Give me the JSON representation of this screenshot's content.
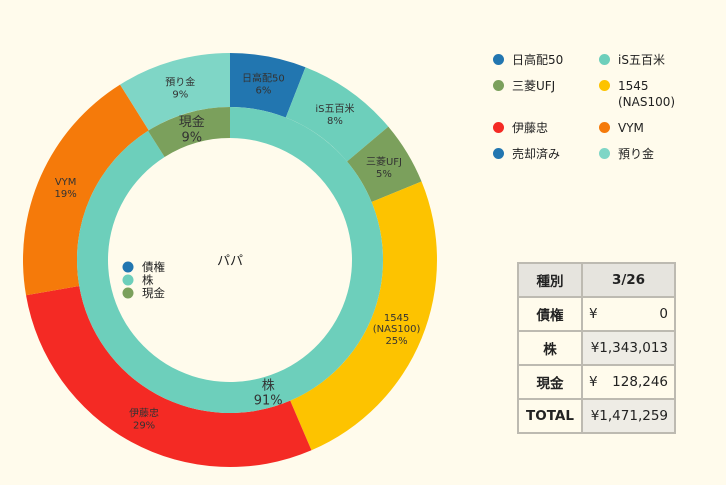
{
  "chart_data": {
    "type": "pie",
    "center_label": "パパ",
    "outer": [
      {
        "label": "日高配50",
        "pct_label": "6%",
        "value": 6,
        "color": "#2276b0"
      },
      {
        "label": "iS五百米",
        "pct_label": "8%",
        "value": 8,
        "color": "#6dcfbb"
      },
      {
        "label": "三菱UFJ",
        "pct_label": "5%",
        "value": 5,
        "color": "#7ba05c"
      },
      {
        "label": "1545\n(NAS100)",
        "pct_label": "25%",
        "value": 25,
        "color": "#fdc300"
      },
      {
        "label": "伊藤忠",
        "pct_label": "29%",
        "value": 29,
        "color": "#f42a24"
      },
      {
        "label": "VYM",
        "pct_label": "19%",
        "value": 19,
        "color": "#f57a0a"
      },
      {
        "label": "預り金",
        "pct_label": "9%",
        "value": 9,
        "color": "#7fd6c6"
      }
    ],
    "inner": [
      {
        "label": "債権",
        "pct_label": "",
        "value": 0,
        "color": "#2276b0"
      },
      {
        "label": "株",
        "pct_label": "91%",
        "value": 91,
        "color": "#6dcfbb"
      },
      {
        "label": "現金",
        "pct_label": "9%",
        "value": 9,
        "color": "#7ba05c"
      }
    ],
    "inner_legend": [
      "債権",
      "株",
      "現金"
    ]
  },
  "legend": [
    {
      "label": "日高配50",
      "color": "#2276b0"
    },
    {
      "label": "iS五百米",
      "color": "#6dcfbb"
    },
    {
      "label": "三菱UFJ",
      "color": "#7ba05c"
    },
    {
      "label": "1545\n(NAS100)",
      "color": "#fdc300"
    },
    {
      "label": "伊藤忠",
      "color": "#f42a24"
    },
    {
      "label": "VYM",
      "color": "#f57a0a"
    },
    {
      "label": "売却済み",
      "color": "#2276b0"
    },
    {
      "label": "預り金",
      "color": "#7fd6c6"
    }
  ],
  "summary": {
    "header_label": "種別",
    "header_date": "3/26",
    "rows": [
      {
        "label": "債権",
        "yen": "¥",
        "value": "0"
      },
      {
        "label": "株",
        "yen": "",
        "value": "¥1,343,013"
      },
      {
        "label": "現金",
        "yen": "¥",
        "value": "128,246"
      },
      {
        "label": "TOTAL",
        "yen": "",
        "value": "¥1,471,259"
      }
    ]
  }
}
